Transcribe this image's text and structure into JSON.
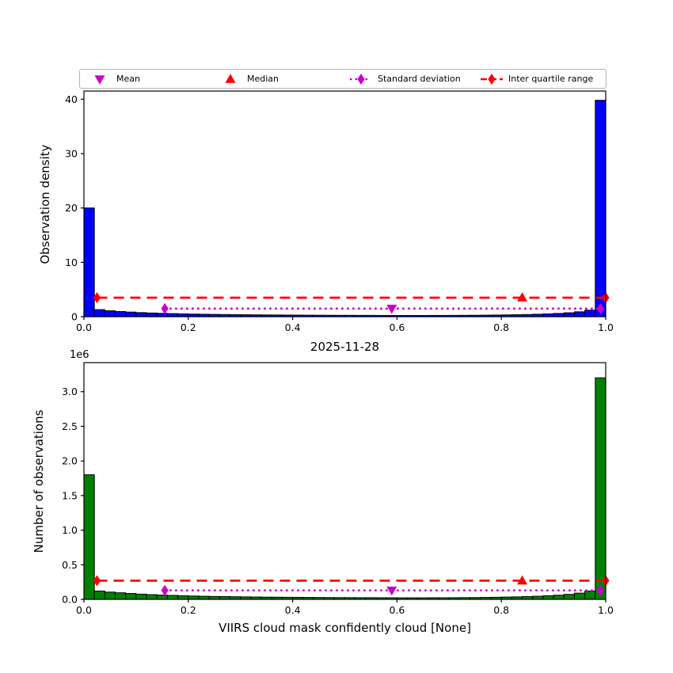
{
  "figure": {
    "title": "2025-11-28",
    "xlabel": "VIIRS cloud mask confidently cloud [None]",
    "background": "#ffffff",
    "offset_label": "1e6"
  },
  "legend": {
    "items": [
      {
        "label": "Mean",
        "marker": "triangle-down",
        "color": "#CC00CC",
        "line": "none"
      },
      {
        "label": "Median",
        "marker": "triangle-up",
        "color": "#FF0000",
        "line": "none"
      },
      {
        "label": "Standard deviation",
        "marker": "diamond",
        "color": "#CC00CC",
        "line": "dotted"
      },
      {
        "label": "Inter quartile range",
        "marker": "diamond",
        "color": "#FF0000",
        "line": "dashed"
      }
    ]
  },
  "chart_data": [
    {
      "name": "observation-density-histogram",
      "type": "bar",
      "title": "",
      "xlabel": "",
      "ylabel": "Observation density",
      "bar_color": "#0000FF",
      "bar_edge_color": "#000000",
      "bin_start": 0.0,
      "bin_width": 0.02,
      "values": [
        20.0,
        1.3,
        1.1,
        0.95,
        0.85,
        0.75,
        0.68,
        0.62,
        0.57,
        0.52,
        0.48,
        0.45,
        0.42,
        0.4,
        0.38,
        0.36,
        0.34,
        0.32,
        0.31,
        0.3,
        0.29,
        0.28,
        0.27,
        0.26,
        0.25,
        0.25,
        0.24,
        0.24,
        0.23,
        0.23,
        0.22,
        0.22,
        0.22,
        0.23,
        0.23,
        0.24,
        0.25,
        0.26,
        0.28,
        0.3,
        0.33,
        0.36,
        0.4,
        0.45,
        0.52,
        0.6,
        0.72,
        0.9,
        1.2,
        39.8
      ],
      "xlim": [
        0.0,
        1.0
      ],
      "ylim": [
        0,
        41.5
      ],
      "grid": false,
      "xticks": [
        {
          "v": 0.0,
          "label": "0.0"
        },
        {
          "v": 0.2,
          "label": "0.2"
        },
        {
          "v": 0.4,
          "label": "0.4"
        },
        {
          "v": 0.6,
          "label": "0.6"
        },
        {
          "v": 0.8,
          "label": "0.8"
        },
        {
          "v": 1.0,
          "label": "1.0"
        }
      ],
      "yticks": [
        {
          "v": 0,
          "label": "0"
        },
        {
          "v": 10,
          "label": "10"
        },
        {
          "v": 20,
          "label": "20"
        },
        {
          "v": 30,
          "label": "30"
        },
        {
          "v": 40,
          "label": "40"
        }
      ],
      "stats": {
        "mean": {
          "x": 0.59,
          "color": "#CC00CC"
        },
        "median": {
          "x": 0.84,
          "color": "#FF0000"
        },
        "std": {
          "y": 1.5,
          "x1": 0.155,
          "x2": 0.99,
          "color": "#CC00CC"
        },
        "iqr": {
          "y": 3.5,
          "x1": 0.025,
          "x2": 1.0,
          "color": "#FF0000"
        }
      }
    },
    {
      "name": "observation-count-histogram",
      "type": "bar",
      "title": "2025-11-28",
      "xlabel": "VIIRS cloud mask confidently cloud [None]",
      "ylabel": "Number of observations",
      "y_unit": "1e6",
      "bar_color": "#008000",
      "bar_edge_color": "#000000",
      "bin_start": 0.0,
      "bin_width": 0.02,
      "values": [
        1.8,
        0.12,
        0.105,
        0.095,
        0.085,
        0.075,
        0.068,
        0.062,
        0.057,
        0.052,
        0.048,
        0.045,
        0.042,
        0.04,
        0.038,
        0.036,
        0.034,
        0.032,
        0.031,
        0.03,
        0.029,
        0.028,
        0.027,
        0.026,
        0.025,
        0.025,
        0.024,
        0.024,
        0.023,
        0.023,
        0.022,
        0.022,
        0.022,
        0.023,
        0.023,
        0.024,
        0.025,
        0.026,
        0.028,
        0.03,
        0.033,
        0.036,
        0.04,
        0.045,
        0.052,
        0.06,
        0.072,
        0.09,
        0.12,
        3.2
      ],
      "xlim": [
        0.0,
        1.0
      ],
      "ylim": [
        0,
        3.42
      ],
      "grid": false,
      "xticks": [
        {
          "v": 0.0,
          "label": "0.0"
        },
        {
          "v": 0.2,
          "label": "0.2"
        },
        {
          "v": 0.4,
          "label": "0.4"
        },
        {
          "v": 0.6,
          "label": "0.6"
        },
        {
          "v": 0.8,
          "label": "0.8"
        },
        {
          "v": 1.0,
          "label": "1.0"
        }
      ],
      "yticks": [
        {
          "v": 0.0,
          "label": "0.0"
        },
        {
          "v": 0.5,
          "label": "0.5"
        },
        {
          "v": 1.0,
          "label": "1.0"
        },
        {
          "v": 1.5,
          "label": "1.5"
        },
        {
          "v": 2.0,
          "label": "2.0"
        },
        {
          "v": 2.5,
          "label": "2.5"
        },
        {
          "v": 3.0,
          "label": "3.0"
        }
      ],
      "stats": {
        "mean": {
          "x": 0.59,
          "color": "#CC00CC"
        },
        "median": {
          "x": 0.84,
          "color": "#FF0000"
        },
        "std": {
          "y": 0.13,
          "x1": 0.155,
          "x2": 0.99,
          "color": "#CC00CC"
        },
        "iqr": {
          "y": 0.27,
          "x1": 0.025,
          "x2": 1.0,
          "color": "#FF0000"
        }
      }
    }
  ]
}
